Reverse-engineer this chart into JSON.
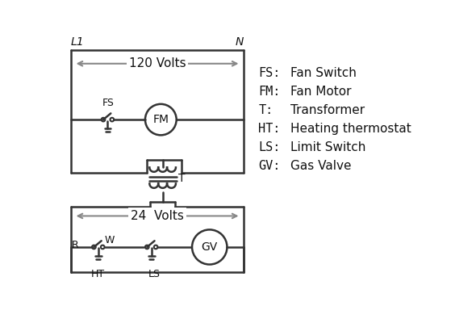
{
  "background_color": "#ffffff",
  "line_color": "#333333",
  "arrow_color": "#888888",
  "text_color": "#111111",
  "legend_items": [
    [
      "FS:",
      "Fan Switch"
    ],
    [
      "FM:",
      "Fan Motor"
    ],
    [
      "T:",
      "Transformer"
    ],
    [
      "HT:",
      "Heating thermostat"
    ],
    [
      "LS:",
      "Limit Switch"
    ],
    [
      "GV:",
      "Gas Valve"
    ]
  ],
  "L1_label": "L1",
  "N_label": "N",
  "volts120_label": "120 Volts",
  "volts24_label": "24  Volts",
  "T_label": "T",
  "R_label": "R",
  "W_label": "W",
  "HT_label": "HT",
  "LS_label": "LS",
  "FS_label": "FS",
  "FM_label": "FM",
  "GV_label": "GV"
}
